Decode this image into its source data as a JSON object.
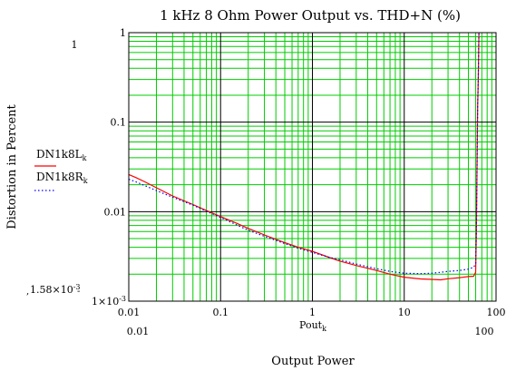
{
  "chart_data": {
    "type": "line",
    "title": "1 kHz 8 Ohm Power Output vs. THD+N (%)",
    "xlabel": "Output Power",
    "ylabel": "Distortion in Percent",
    "x_variable": {
      "main": "Pout",
      "sub": "k"
    },
    "xscale": "log",
    "yscale": "log",
    "xlim": [
      0.01,
      100
    ],
    "ylim": [
      0.001,
      1
    ],
    "x_ticks": [
      "0.01",
      "0.1",
      "1",
      "10",
      "100"
    ],
    "y_ticks": [
      {
        "value": 0.001,
        "main": "1×10",
        "sup": "-3"
      },
      {
        "value": 0.01,
        "main": "0.01",
        "sup": ""
      },
      {
        "value": 0.1,
        "main": "0.1",
        "sup": ""
      },
      {
        "value": 1,
        "main": "1",
        "sup": ""
      }
    ],
    "x_range_readout": {
      "min": "0.01",
      "max": "100"
    },
    "y_range_readout": {
      "max": "1",
      "min_main": "1.58×10",
      "min_sup": "-3"
    },
    "grid": true,
    "grid_color": "#00cc00",
    "major_grid_color": "#000000",
    "legend_position": "left",
    "series": [
      {
        "name": "DN1k8L",
        "name_sub": "k",
        "color": "#ff0000",
        "style": "solid",
        "points": [
          [
            0.01,
            0.026
          ],
          [
            0.012,
            0.024
          ],
          [
            0.015,
            0.0215
          ],
          [
            0.02,
            0.0185
          ],
          [
            0.03,
            0.015
          ],
          [
            0.05,
            0.012
          ],
          [
            0.07,
            0.0103
          ],
          [
            0.1,
            0.0088
          ],
          [
            0.15,
            0.0074
          ],
          [
            0.2,
            0.0065
          ],
          [
            0.3,
            0.0055
          ],
          [
            0.5,
            0.0045
          ],
          [
            0.7,
            0.004
          ],
          [
            1,
            0.0036
          ],
          [
            1.5,
            0.0031
          ],
          [
            2,
            0.0028
          ],
          [
            3,
            0.0025
          ],
          [
            5,
            0.0022
          ],
          [
            7,
            0.002
          ],
          [
            10,
            0.00185
          ],
          [
            15,
            0.00177
          ],
          [
            20,
            0.00175
          ],
          [
            25,
            0.00173
          ],
          [
            30,
            0.00178
          ],
          [
            40,
            0.00183
          ],
          [
            50,
            0.00188
          ],
          [
            57,
            0.0019
          ],
          [
            60,
            0.0021
          ],
          [
            61,
            0.006
          ],
          [
            62,
            0.03
          ],
          [
            63,
            0.15
          ],
          [
            64,
            0.3
          ],
          [
            65,
            1
          ]
        ]
      },
      {
        "name": "DN1k8R",
        "name_sub": "k",
        "color": "#0000ff",
        "style": "dotted",
        "points": [
          [
            0.01,
            0.023
          ],
          [
            0.012,
            0.0215
          ],
          [
            0.015,
            0.0195
          ],
          [
            0.02,
            0.0172
          ],
          [
            0.03,
            0.0145
          ],
          [
            0.05,
            0.0118
          ],
          [
            0.07,
            0.0101
          ],
          [
            0.1,
            0.0086
          ],
          [
            0.15,
            0.0071
          ],
          [
            0.2,
            0.0062
          ],
          [
            0.3,
            0.0053
          ],
          [
            0.5,
            0.0044
          ],
          [
            0.7,
            0.0039
          ],
          [
            1,
            0.0035
          ],
          [
            1.5,
            0.0031
          ],
          [
            2,
            0.0029
          ],
          [
            3,
            0.0026
          ],
          [
            5,
            0.0023
          ],
          [
            7,
            0.00215
          ],
          [
            10,
            0.00205
          ],
          [
            15,
            0.00203
          ],
          [
            20,
            0.00205
          ],
          [
            25,
            0.0021
          ],
          [
            30,
            0.00215
          ],
          [
            40,
            0.0022
          ],
          [
            50,
            0.00228
          ],
          [
            57,
            0.0024
          ],
          [
            60,
            0.0026
          ],
          [
            61,
            0.006
          ],
          [
            62,
            0.03
          ],
          [
            63,
            0.15
          ],
          [
            64,
            0.3
          ],
          [
            65,
            1
          ]
        ]
      }
    ]
  }
}
